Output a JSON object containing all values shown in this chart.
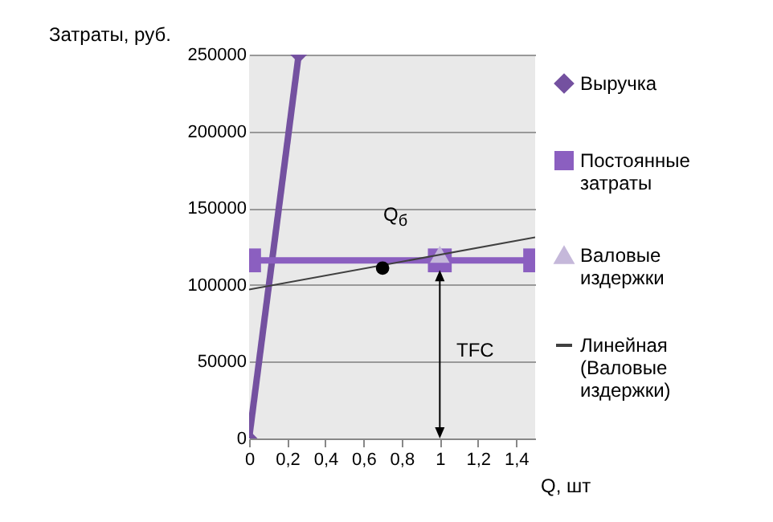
{
  "chart_data": {
    "type": "line",
    "xlabel": "Q, шт",
    "ylabel": "Затраты, руб.",
    "xlim": [
      0,
      1.5
    ],
    "xticks": [
      0,
      {
        "value": 0.2,
        "label": "0,2"
      },
      {
        "value": 0.4,
        "label": "0,4"
      },
      {
        "value": 0.6,
        "label": "0,6"
      },
      {
        "value": 0.8,
        "label": "0,8"
      },
      1,
      {
        "value": 1.2,
        "label": "1,2"
      },
      {
        "value": 1.4,
        "label": "1,4"
      }
    ],
    "ylim": [
      0,
      250000
    ],
    "yticks": [
      0,
      50000,
      100000,
      150000,
      200000,
      250000
    ],
    "grid": "y",
    "legend": "right",
    "series": [
      {
        "name": "Выручка",
        "marker": "diamond",
        "color": "#7451a0",
        "x": [
          0,
          0.26
        ],
        "values": [
          0,
          250000
        ]
      },
      {
        "name": "Постоянные затраты",
        "marker": "square",
        "color": "#8b5fc0",
        "x": [
          0,
          1,
          1.5
        ],
        "values": [
          116000,
          116000,
          116000
        ]
      },
      {
        "name": "Валовые издержки",
        "type": "scatter",
        "marker": "triangle",
        "color": "#c5b8da",
        "x": [
          1
        ],
        "values": [
          120000
        ]
      },
      {
        "name": "Линейная (Валовые издержки)",
        "marker": "none",
        "color": "#404040",
        "x": [
          0,
          1.5
        ],
        "values": [
          97000,
          131000
        ]
      },
      {
        "type": "scatter",
        "marker": "circle",
        "color": "#000000",
        "x": [
          0.7
        ],
        "values": [
          111000
        ]
      }
    ],
    "annotations": [
      "Q$_{б}$",
      "TFC"
    ]
  }
}
